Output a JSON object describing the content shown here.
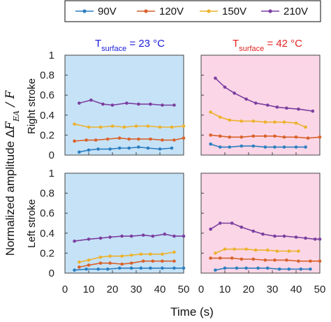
{
  "colors": {
    "blue_panel": "#c6e2f7",
    "pink_panel": "#fbd6e6",
    "title_cold": "#1a1adb",
    "title_hot": "#e32222",
    "series": [
      "#2c7fc1",
      "#d9622b",
      "#ecb22c",
      "#7b3fa0"
    ]
  },
  "legend": {
    "items": [
      "90V",
      "120V",
      "150V",
      "210V"
    ]
  },
  "columns": [
    {
      "title_prefix": "T",
      "title_sub": "surface",
      "title_value": " = 23 °C"
    },
    {
      "title_prefix": "T",
      "title_sub": "surface",
      "title_value": " = 42 °C"
    }
  ],
  "rows": [
    "Right stroke",
    "Left stroke"
  ],
  "ylabel_main": "Normalized amplitude Δ",
  "ylabel_math": "F",
  "ylabel_sub": "EA",
  "ylabel_tail": " / F",
  "xlabel": "Time (s)",
  "chart_data": [
    {
      "type": "line",
      "row": "Right stroke",
      "column": "T surface = 23 °C",
      "xlim": [
        0,
        50
      ],
      "ylim": [
        0,
        1
      ],
      "xticks": [
        "0",
        "10",
        "20",
        "30",
        "40",
        "50"
      ],
      "yticks": [
        "0",
        "0.2",
        "0.4",
        "0.6",
        "0.8",
        "1"
      ],
      "series": [
        {
          "name": "90V",
          "x": [
            6,
            10,
            14,
            19,
            23,
            27,
            31,
            35,
            40,
            45
          ],
          "values": [
            0.03,
            0.05,
            0.06,
            0.06,
            0.07,
            0.07,
            0.08,
            0.07,
            0.06,
            0.07
          ]
        },
        {
          "name": "120V",
          "x": [
            4,
            9,
            13,
            18,
            23,
            27,
            31,
            36,
            41,
            46,
            50
          ],
          "values": [
            0.14,
            0.15,
            0.15,
            0.16,
            0.17,
            0.16,
            0.16,
            0.16,
            0.15,
            0.15,
            0.17
          ]
        },
        {
          "name": "150V",
          "x": [
            4,
            10,
            15,
            20,
            25,
            30,
            35,
            40,
            45,
            50
          ],
          "values": [
            0.31,
            0.28,
            0.28,
            0.29,
            0.28,
            0.29,
            0.29,
            0.28,
            0.28,
            0.29
          ]
        },
        {
          "name": "210V",
          "x": [
            6,
            11,
            16,
            20,
            26,
            31,
            36,
            41,
            46
          ],
          "values": [
            0.52,
            0.55,
            0.51,
            0.5,
            0.52,
            0.51,
            0.51,
            0.5,
            0.5
          ]
        }
      ]
    },
    {
      "type": "line",
      "row": "Right stroke",
      "column": "T surface = 42 °C",
      "xlim": [
        0,
        50
      ],
      "ylim": [
        0,
        1
      ],
      "xticks": [
        "0",
        "10",
        "20",
        "30",
        "40",
        "50"
      ],
      "yticks": [
        "0",
        "0.2",
        "0.4",
        "0.6",
        "0.8",
        "1"
      ],
      "series": [
        {
          "name": "90V",
          "x": [
            4,
            8,
            12,
            17,
            22,
            27,
            31,
            35,
            40,
            44
          ],
          "values": [
            0.11,
            0.08,
            0.08,
            0.09,
            0.09,
            0.08,
            0.08,
            0.08,
            0.08,
            0.08
          ]
        },
        {
          "name": "120V",
          "x": [
            4,
            8,
            12,
            17,
            22,
            27,
            31,
            35,
            40,
            45,
            50
          ],
          "values": [
            0.2,
            0.19,
            0.18,
            0.18,
            0.19,
            0.19,
            0.19,
            0.18,
            0.18,
            0.17,
            0.18
          ]
        },
        {
          "name": "150V",
          "x": [
            4,
            8,
            12,
            17,
            22,
            27,
            31,
            35,
            40,
            44
          ],
          "values": [
            0.43,
            0.38,
            0.35,
            0.34,
            0.34,
            0.33,
            0.33,
            0.33,
            0.32,
            0.28
          ]
        },
        {
          "name": "210V",
          "x": [
            6,
            10,
            14,
            19,
            23,
            28,
            32,
            36,
            41,
            47
          ],
          "values": [
            0.77,
            0.68,
            0.62,
            0.56,
            0.52,
            0.5,
            0.48,
            0.47,
            0.46,
            0.44
          ]
        }
      ]
    },
    {
      "type": "line",
      "row": "Left stroke",
      "column": "T surface = 23 °C",
      "xlim": [
        0,
        50
      ],
      "ylim": [
        0,
        1
      ],
      "xticks": [
        "0",
        "10",
        "20",
        "30",
        "40",
        "50"
      ],
      "yticks": [
        "0",
        "0.2",
        "0.4",
        "0.6",
        "0.8",
        "1"
      ],
      "series": [
        {
          "name": "90V",
          "x": [
            4,
            9,
            14,
            18,
            23,
            28,
            32,
            36,
            41,
            46,
            50
          ],
          "values": [
            0.03,
            0.04,
            0.04,
            0.04,
            0.05,
            0.05,
            0.05,
            0.05,
            0.05,
            0.05,
            0.05
          ]
        },
        {
          "name": "120V",
          "x": [
            6,
            10,
            15,
            19,
            24,
            28,
            33,
            37,
            41,
            46
          ],
          "values": [
            0.06,
            0.08,
            0.1,
            0.1,
            0.09,
            0.1,
            0.12,
            0.12,
            0.12,
            0.12
          ]
        },
        {
          "name": "150V",
          "x": [
            6,
            10,
            15,
            19,
            24,
            28,
            32,
            36,
            41,
            46
          ],
          "values": [
            0.11,
            0.13,
            0.16,
            0.17,
            0.17,
            0.18,
            0.19,
            0.19,
            0.19,
            0.21
          ]
        },
        {
          "name": "210V",
          "x": [
            4,
            10,
            15,
            19,
            24,
            28,
            33,
            37,
            42,
            46,
            50
          ],
          "values": [
            0.32,
            0.34,
            0.35,
            0.36,
            0.37,
            0.37,
            0.38,
            0.37,
            0.39,
            0.37,
            0.37
          ]
        }
      ]
    },
    {
      "type": "line",
      "row": "Left stroke",
      "column": "T surface = 42 °C",
      "xlim": [
        0,
        50
      ],
      "ylim": [
        0,
        1
      ],
      "xticks": [
        "0",
        "10",
        "20",
        "30",
        "40",
        "50"
      ],
      "yticks": [
        "0",
        "0.2",
        "0.4",
        "0.6",
        "0.8",
        "1"
      ],
      "series": [
        {
          "name": "90V",
          "x": [
            6,
            10,
            15,
            19,
            24,
            28,
            33,
            37,
            42,
            46
          ],
          "values": [
            0.03,
            0.05,
            0.05,
            0.05,
            0.05,
            0.05,
            0.04,
            0.04,
            0.04,
            0.04
          ]
        },
        {
          "name": "120V",
          "x": [
            4,
            8,
            13,
            17,
            22,
            27,
            31,
            36,
            41,
            46,
            50
          ],
          "values": [
            0.15,
            0.15,
            0.15,
            0.14,
            0.14,
            0.13,
            0.13,
            0.13,
            0.12,
            0.12,
            0.12
          ]
        },
        {
          "name": "150V",
          "x": [
            6,
            10,
            14,
            19,
            23,
            28,
            32,
            37,
            41
          ],
          "values": [
            0.2,
            0.24,
            0.24,
            0.24,
            0.23,
            0.23,
            0.22,
            0.22,
            0.22
          ]
        },
        {
          "name": "210V",
          "x": [
            4,
            8,
            13,
            17,
            22,
            26,
            31,
            35,
            40,
            44,
            48,
            50
          ],
          "values": [
            0.44,
            0.5,
            0.5,
            0.46,
            0.42,
            0.39,
            0.37,
            0.37,
            0.36,
            0.35,
            0.34,
            0.34
          ]
        }
      ]
    }
  ]
}
